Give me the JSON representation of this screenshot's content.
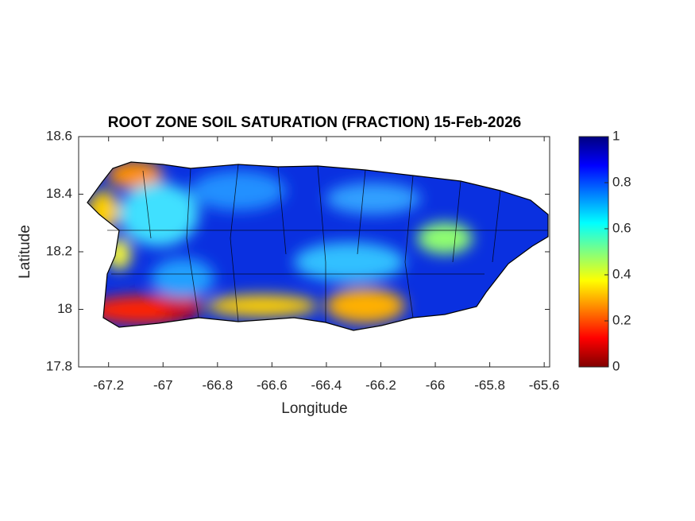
{
  "chart_data": {
    "type": "heatmap-map",
    "title": "ROOT ZONE SOIL SATURATION (FRACTION) 15-Feb-2026",
    "x_label": "Longitude",
    "y_label": "Latitude",
    "xlim": [
      -67.31,
      -65.58
    ],
    "xticks": [
      -67.2,
      -67,
      -66.8,
      -66.6,
      -66.4,
      -66.2,
      -66,
      -65.8,
      -65.6
    ],
    "ylim": [
      17.8,
      18.6
    ],
    "yticks": [
      17.8,
      18,
      18.2,
      18.4,
      18.6
    ],
    "colorbar": {
      "lim": [
        0,
        1
      ],
      "ticks": [
        0,
        0.2,
        0.4,
        0.6,
        0.8,
        1
      ],
      "colors": [
        "#800000",
        "#ff0000",
        "#ff8000",
        "#ffff00",
        "#80ff80",
        "#00ffff",
        "#0080ff",
        "#0000ff",
        "#000080"
      ]
    }
  }
}
